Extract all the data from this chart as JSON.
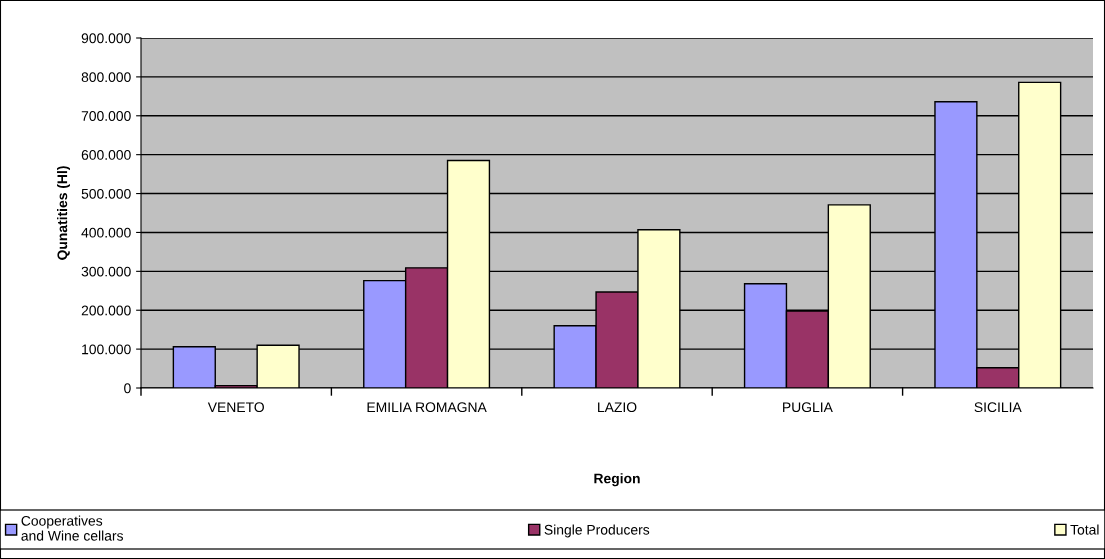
{
  "chart_data": {
    "type": "bar",
    "xlabel": "Region",
    "ylabel": "Qunatities (Hl)",
    "categories": [
      "VENETO",
      "EMILIA ROMAGNA",
      "LAZIO",
      "PUGLIA",
      "SICILIA"
    ],
    "series": [
      {
        "name": "Cooperatives\nand Wine cellars",
        "color": "#9999ff",
        "values": [
          106000,
          276000,
          160000,
          268000,
          736000
        ]
      },
      {
        "name": "Single Producers",
        "color": "#993366",
        "values": [
          6000,
          309000,
          247000,
          198000,
          52000
        ]
      },
      {
        "name": "Total",
        "color": "#ffffcc",
        "values": [
          110000,
          585000,
          407000,
          471000,
          786000
        ]
      }
    ],
    "ylim": [
      0,
      900000
    ],
    "yticks": [
      0,
      {
        "value": 100000,
        "label": "100.000"
      },
      {
        "value": 200000,
        "label": "200.000"
      },
      {
        "value": 300000,
        "label": "300.000"
      },
      {
        "value": 400000,
        "label": "400.000"
      },
      {
        "value": 500000,
        "label": "500.000"
      },
      {
        "value": 600000,
        "label": "600.000"
      },
      {
        "value": 700000,
        "label": "700.000"
      },
      {
        "value": 800000,
        "label": "800.000"
      },
      {
        "value": 900000,
        "label": "900.000"
      }
    ],
    "grid": "y",
    "legend": "bottom"
  }
}
